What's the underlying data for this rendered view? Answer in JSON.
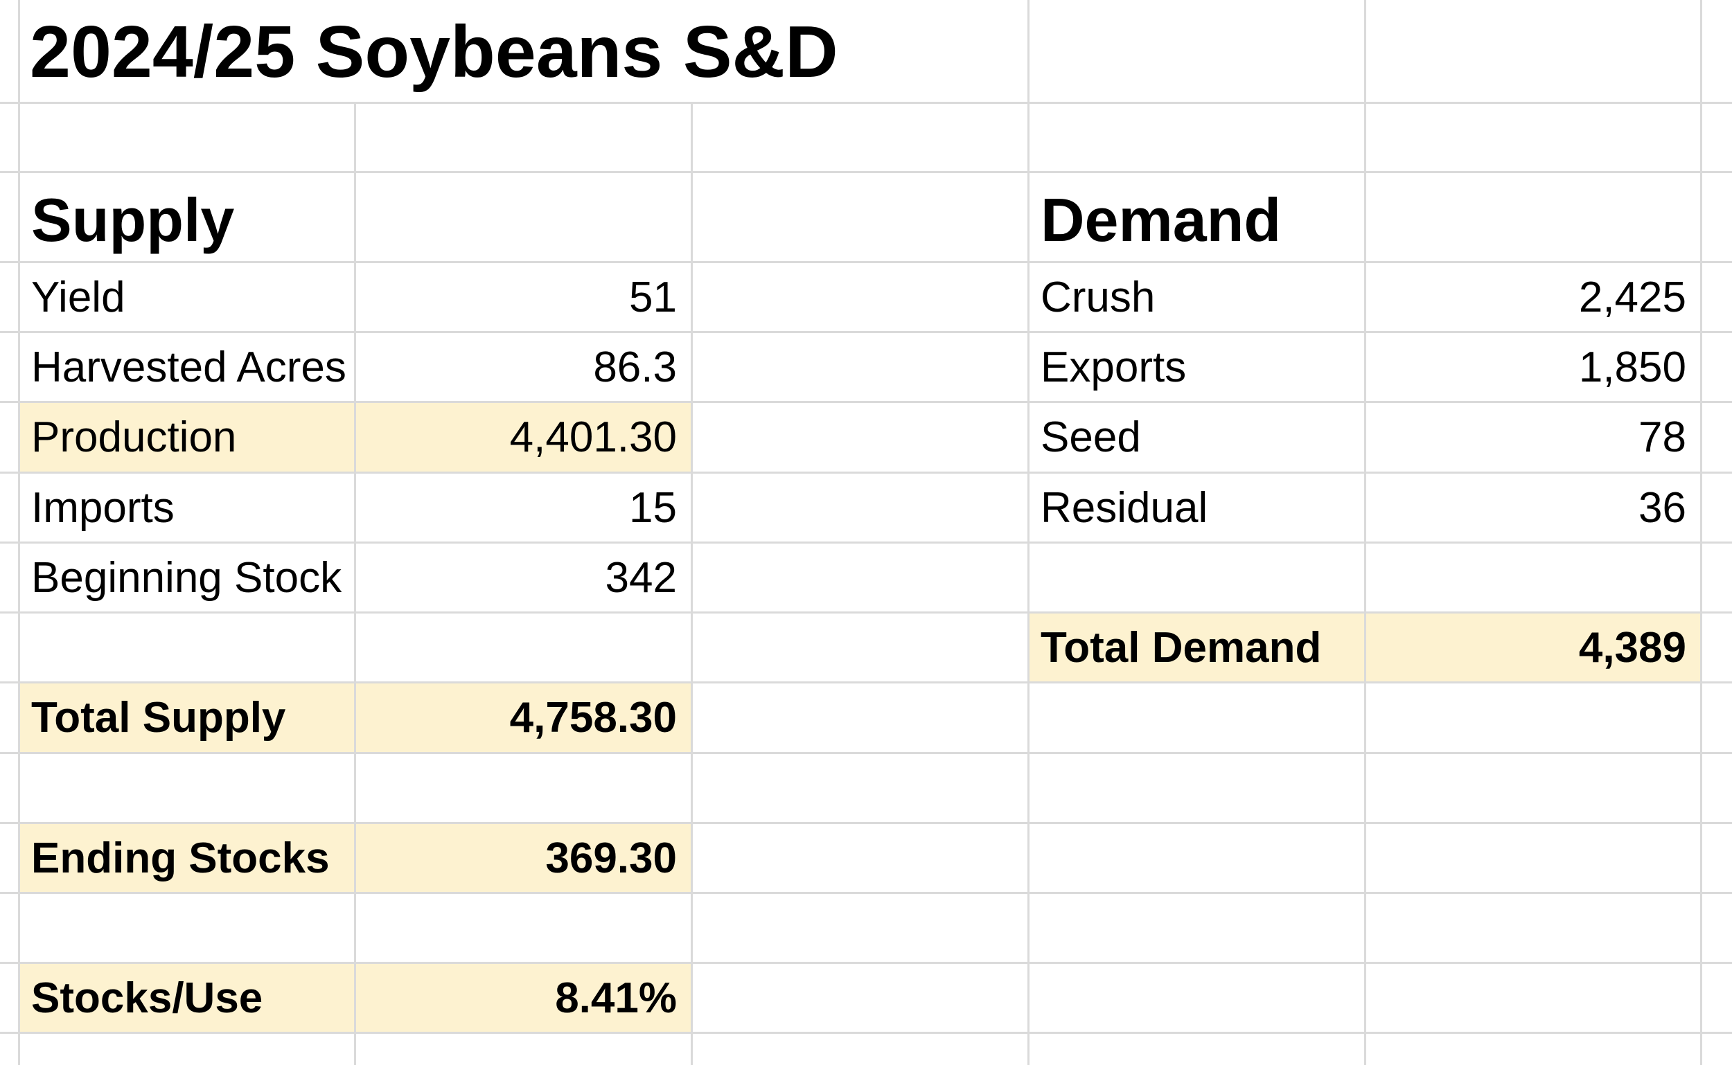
{
  "title": "2024/25 Soybeans S&D",
  "supply": {
    "heading": "Supply",
    "rows": [
      {
        "label": "Yield",
        "value": "51"
      },
      {
        "label": "Harvested Acres",
        "value": "86.3"
      },
      {
        "label": "Production",
        "value": "4,401.30"
      },
      {
        "label": "Imports",
        "value": "15"
      },
      {
        "label": "Beginning Stock",
        "value": "342"
      }
    ],
    "total": {
      "label": "Total Supply",
      "value": "4,758.30"
    }
  },
  "ending_stocks": {
    "label": "Ending Stocks",
    "value": "369.30"
  },
  "stocks_use": {
    "label": "Stocks/Use",
    "value": "8.41%"
  },
  "demand": {
    "heading": "Demand",
    "rows": [
      {
        "label": "Crush",
        "value": "2,425"
      },
      {
        "label": "Exports",
        "value": "1,850"
      },
      {
        "label": "Seed",
        "value": "78"
      },
      {
        "label": "Residual",
        "value": "36"
      }
    ],
    "total": {
      "label": "Total Demand",
      "value": "4,389"
    }
  },
  "colors": {
    "highlight": "#fdf2d0",
    "gridline": "#dadada"
  }
}
